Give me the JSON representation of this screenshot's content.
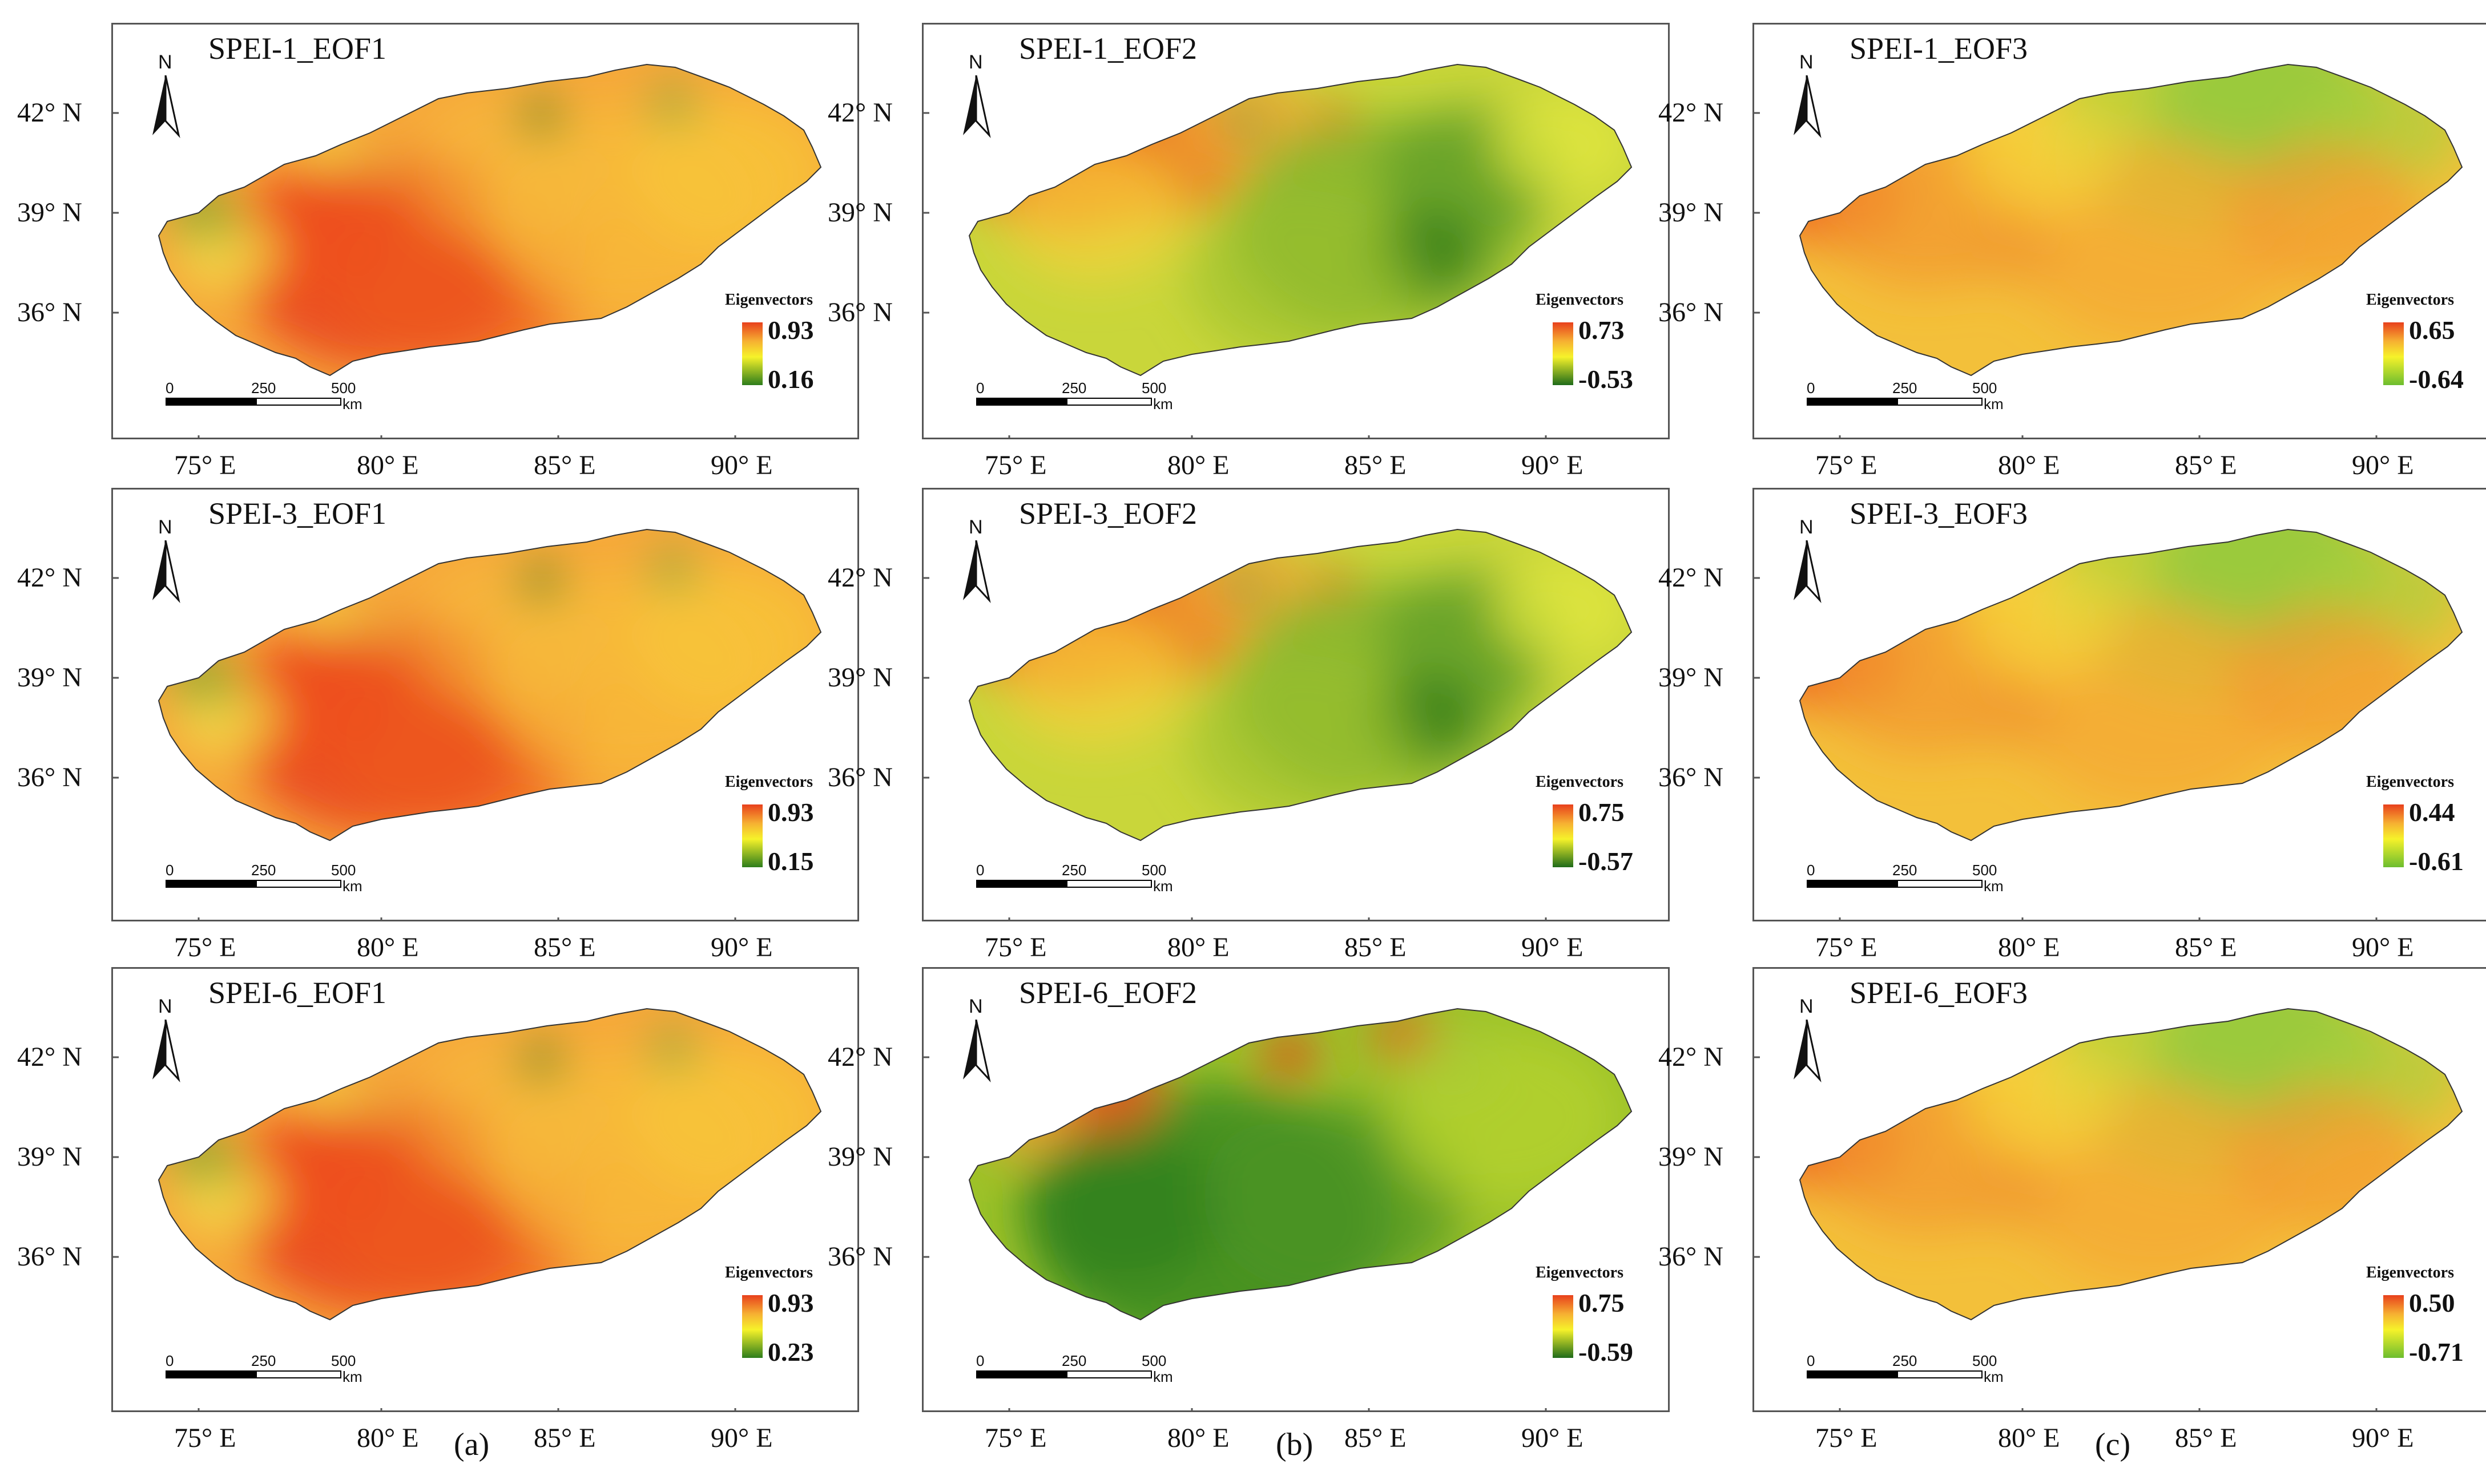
{
  "column_labels": [
    "(a)",
    "(b)",
    "(c)"
  ],
  "latitude_labels": [
    "42° N",
    "39° N",
    "36° N"
  ],
  "longitude_labels": [
    "75° E",
    "80° E",
    "85° E",
    "90° E"
  ],
  "north_arrow_label": "N",
  "legend_title": "Eigenvectors",
  "scale": {
    "ticks": [
      "0",
      "250",
      "500"
    ],
    "unit": "km"
  },
  "colors": {
    "red": "#e83a1a",
    "orange": "#f5a623",
    "yellow": "#f6f22a",
    "green": "#8cc63f",
    "dark_green": "#1f6b1a",
    "frame": "#555555"
  },
  "panels": [
    {
      "title": "SPEI-1_EOF1",
      "legend_max": "0.93",
      "legend_min": "0.16",
      "scheme": "warm"
    },
    {
      "title": "SPEI-1_EOF2",
      "legend_max": "0.73",
      "legend_min": "-0.53",
      "scheme": "split"
    },
    {
      "title": "SPEI-1_EOF3",
      "legend_max": "0.65",
      "legend_min": "-0.64",
      "scheme": "mixed"
    },
    {
      "title": "SPEI-3_EOF1",
      "legend_max": "0.93",
      "legend_min": "0.15",
      "scheme": "warm"
    },
    {
      "title": "SPEI-3_EOF2",
      "legend_max": "0.75",
      "legend_min": "-0.57",
      "scheme": "split"
    },
    {
      "title": "SPEI-3_EOF3",
      "legend_max": "0.44",
      "legend_min": "-0.61",
      "scheme": "mixed"
    },
    {
      "title": "SPEI-6_EOF1",
      "legend_max": "0.93",
      "legend_min": "0.23",
      "scheme": "warm"
    },
    {
      "title": "SPEI-6_EOF2",
      "legend_max": "0.75",
      "legend_min": "-0.59",
      "scheme": "cool"
    },
    {
      "title": "SPEI-6_EOF3",
      "legend_max": "0.50",
      "legend_min": "-0.71",
      "scheme": "mixed"
    }
  ]
}
